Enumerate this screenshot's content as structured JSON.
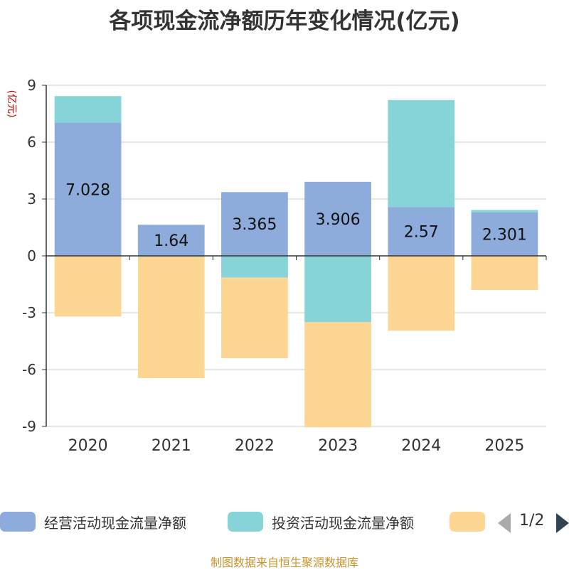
{
  "chart_data": {
    "type": "bar",
    "stacked": true,
    "title": "各项现金流净额历年变化情况(亿元)",
    "ylabel": "(亿元)",
    "xlabel": "",
    "ylim": [
      -9,
      9
    ],
    "yticks": [
      9,
      6,
      3,
      0,
      -3,
      -6,
      -9
    ],
    "categories": [
      "2020",
      "2021",
      "2022",
      "2023",
      "2024",
      "2025"
    ],
    "series": [
      {
        "name": "经营活动现金流量净额",
        "color": "#8eacdb",
        "values": [
          7.028,
          1.64,
          3.365,
          3.906,
          2.57,
          2.301
        ],
        "labels": [
          "7.028",
          "1.64",
          "3.365",
          "3.906",
          "2.57",
          "2.301"
        ]
      },
      {
        "name": "投资活动现金流量净额",
        "color": "#86d4d7",
        "values": [
          1.4,
          -0.05,
          -1.15,
          -3.5,
          5.65,
          0.12
        ]
      },
      {
        "name": "",
        "color": "#fed694",
        "values": [
          -3.2,
          -6.4,
          -4.25,
          -5.55,
          -3.95,
          -1.8
        ]
      }
    ]
  },
  "legend": {
    "items": [
      {
        "label": "经营活动现金流量净额",
        "color": "#8eacdb"
      },
      {
        "label": "投资活动现金流量净额",
        "color": "#86d4d7"
      },
      {
        "label": "",
        "color": "#fed694"
      }
    ],
    "page": "1/2"
  },
  "footer": {
    "source": "制图数据来自恒生聚源数据库"
  }
}
